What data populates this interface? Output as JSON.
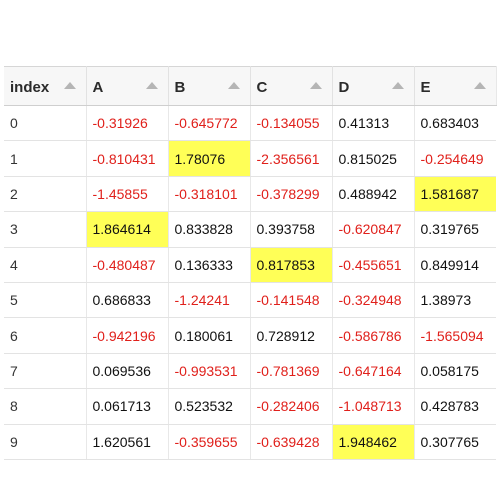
{
  "table": {
    "columns": [
      {
        "key": "index",
        "label": "index"
      },
      {
        "key": "A",
        "label": "A"
      },
      {
        "key": "B",
        "label": "B"
      },
      {
        "key": "C",
        "label": "C"
      },
      {
        "key": "D",
        "label": "D"
      },
      {
        "key": "E",
        "label": "E"
      }
    ],
    "rows": [
      {
        "index": "0",
        "cells": [
          "-0.31926",
          "-0.645772",
          "-0.134055",
          "0.41313",
          "0.683403"
        ]
      },
      {
        "index": "1",
        "cells": [
          "-0.810431",
          "1.78076",
          "-2.356561",
          "0.815025",
          "-0.254649"
        ]
      },
      {
        "index": "2",
        "cells": [
          "-1.45855",
          "-0.318101",
          "-0.378299",
          "0.488942",
          "1.581687"
        ]
      },
      {
        "index": "3",
        "cells": [
          "1.864614",
          "0.833828",
          "0.393758",
          "-0.620847",
          "0.319765"
        ]
      },
      {
        "index": "4",
        "cells": [
          "-0.480487",
          "0.136333",
          "0.817853",
          "-0.455651",
          "0.849914"
        ]
      },
      {
        "index": "5",
        "cells": [
          "0.686833",
          "-1.24241",
          "-0.141548",
          "-0.324948",
          "1.38973"
        ]
      },
      {
        "index": "6",
        "cells": [
          "-0.942196",
          "0.180061",
          "0.728912",
          "-0.586786",
          "-1.565094"
        ]
      },
      {
        "index": "7",
        "cells": [
          "0.069536",
          "-0.993531",
          "-0.781369",
          "-0.647164",
          "0.058175"
        ]
      },
      {
        "index": "8",
        "cells": [
          "0.061713",
          "0.523532",
          "-0.282406",
          "-1.048713",
          "0.428783"
        ]
      },
      {
        "index": "9",
        "cells": [
          "1.620561",
          "-0.359655",
          "-0.639428",
          "1.948462",
          "0.307765"
        ]
      }
    ],
    "highlights": [
      {
        "row": 3,
        "col": 0
      },
      {
        "row": 1,
        "col": 1
      },
      {
        "row": 4,
        "col": 2
      },
      {
        "row": 9,
        "col": 3
      },
      {
        "row": 2,
        "col": 4
      }
    ],
    "header_icon": "sort-icon",
    "colors": {
      "negative_text": "#e0201b",
      "positive_text": "#111111",
      "max_highlight": "#ffff57",
      "header_background": "#f7f7f7"
    }
  }
}
